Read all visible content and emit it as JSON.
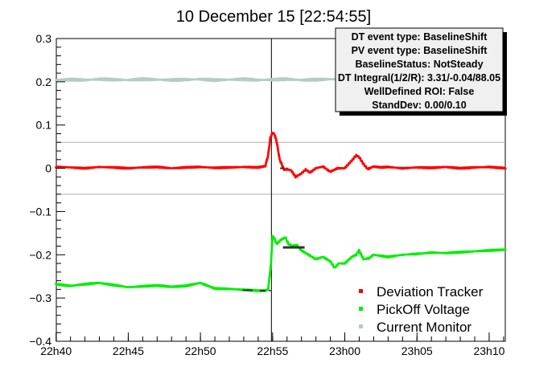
{
  "chart_data": {
    "type": "scatter",
    "title": "10 December 15 [22:54:55]",
    "xlabel": "",
    "ylabel": "",
    "x_axis": {
      "range_minutes": [
        -14.9,
        16.2
      ],
      "ticks": [
        {
          "label": "22h40",
          "t": -14.917
        },
        {
          "label": "22h45",
          "t": -9.917
        },
        {
          "label": "22h50",
          "t": -4.917
        },
        {
          "label": "22h55",
          "t": 0.083
        },
        {
          "label": "23h00",
          "t": 5.083
        },
        {
          "label": "23h05",
          "t": 10.083
        },
        {
          "label": "23h10",
          "t": 15.083
        }
      ]
    },
    "y_axis": {
      "ylim": [
        -0.4,
        0.3
      ],
      "ticks": [
        {
          "label": "0.3",
          "v": 0.3
        },
        {
          "label": "0.2",
          "v": 0.2
        },
        {
          "label": "0.1",
          "v": 0.1
        },
        {
          "label": "0",
          "v": 0.0
        },
        {
          "label": "−0.1",
          "v": -0.1
        },
        {
          "label": "−0.2",
          "v": -0.2
        },
        {
          "label": "−0.3",
          "v": -0.3
        },
        {
          "label": "−0.4",
          "v": -0.4
        }
      ]
    },
    "reference_lines": {
      "horizontal": [
        0.06,
        -0.06
      ],
      "vertical": [
        0.0
      ]
    },
    "series": [
      {
        "name": "Deviation Tracker",
        "color": "#ff0000",
        "x": [
          -15.0,
          -14,
          -13,
          -12,
          -11,
          -10,
          -9,
          -8,
          -7,
          -6,
          -5,
          -4,
          -3,
          -2,
          -1,
          -0.5,
          -0.3,
          -0.15,
          0,
          0.15,
          0.3,
          0.5,
          0.8,
          1.0,
          1.3,
          1.6,
          2.0,
          2.3,
          2.6,
          3.0,
          3.5,
          4.0,
          4.5,
          5.0,
          5.5,
          5.8,
          6.0,
          6.3,
          6.6,
          7.0,
          7.5,
          8,
          9,
          10,
          11,
          12,
          13,
          14,
          15,
          16.2
        ],
        "y": [
          0.003,
          0.002,
          0.0,
          0.003,
          0.002,
          0.0,
          0.002,
          0.003,
          0.0,
          0.002,
          0.003,
          0.001,
          0.002,
          0.003,
          0.002,
          0.005,
          0.03,
          0.07,
          0.082,
          0.078,
          0.06,
          0.02,
          -0.003,
          -0.002,
          -0.005,
          -0.02,
          -0.012,
          -0.003,
          -0.01,
          0.0,
          0.004,
          -0.008,
          0.0,
          0.0,
          0.018,
          0.03,
          0.026,
          0.01,
          -0.002,
          0.004,
          0.002,
          0.003,
          0.0,
          0.002,
          0.001,
          0.003,
          0.0,
          0.002,
          0.003,
          0.0
        ]
      },
      {
        "name": "PickOff Voltage",
        "color": "#00ee00",
        "x": [
          -15.0,
          -14,
          -13,
          -12,
          -11,
          -10,
          -9,
          -8,
          -7,
          -6,
          -5,
          -4,
          -3,
          -2,
          -1,
          -0.5,
          -0.3,
          -0.1,
          0,
          0.1,
          0.3,
          0.6,
          0.9,
          1.1,
          1.4,
          1.7,
          2.0,
          2.5,
          3.0,
          3.5,
          4.0,
          4.3,
          4.6,
          5.0,
          5.5,
          5.8,
          6.0,
          6.3,
          6.7,
          7.0,
          8,
          9,
          10,
          11,
          12,
          13,
          14,
          15,
          16.2
        ],
        "y": [
          -0.268,
          -0.272,
          -0.268,
          -0.265,
          -0.27,
          -0.275,
          -0.273,
          -0.271,
          -0.274,
          -0.272,
          -0.265,
          -0.278,
          -0.279,
          -0.281,
          -0.283,
          -0.283,
          -0.28,
          -0.22,
          -0.157,
          -0.16,
          -0.175,
          -0.165,
          -0.16,
          -0.175,
          -0.18,
          -0.178,
          -0.19,
          -0.2,
          -0.21,
          -0.205,
          -0.215,
          -0.23,
          -0.22,
          -0.22,
          -0.205,
          -0.2,
          -0.19,
          -0.21,
          -0.208,
          -0.2,
          -0.205,
          -0.2,
          -0.198,
          -0.195,
          -0.196,
          -0.194,
          -0.192,
          -0.19,
          -0.188
        ]
      },
      {
        "name": "Current Monitor",
        "color": "#b6cbc4",
        "x": [
          -15.0,
          -14,
          -13,
          -12,
          -11,
          -10,
          -9,
          -8,
          -7,
          -6,
          -5,
          -4,
          -3,
          -2,
          -1,
          0,
          1,
          2,
          3,
          4,
          5,
          6,
          7,
          8,
          9,
          10,
          11,
          12,
          13,
          14,
          15,
          16.2
        ],
        "y": [
          0.204,
          0.205,
          0.204,
          0.206,
          0.205,
          0.204,
          0.206,
          0.205,
          0.204,
          0.205,
          0.206,
          0.204,
          0.205,
          0.206,
          0.204,
          0.205,
          0.206,
          0.204,
          0.205,
          0.206,
          0.205,
          0.204,
          0.205,
          0.206,
          0.205,
          0.204,
          0.206,
          0.205,
          0.204,
          0.205,
          0.206,
          0.205
        ]
      }
    ],
    "legend": {
      "placement": "bottom-right",
      "entries": [
        "Deviation Tracker",
        "PickOff Voltage",
        "Current Monitor"
      ]
    },
    "info_box": {
      "placement": "top-right",
      "lines": [
        "DT event type: BaselineShift",
        "PV event type: BaselineShift",
        "BaselineStatus: NotSteady",
        "DT Integral(1/2/R): 3.31/-0.04/88.05",
        "WellDefined ROI: False",
        "StandDev: 0.00/0.10"
      ]
    }
  }
}
